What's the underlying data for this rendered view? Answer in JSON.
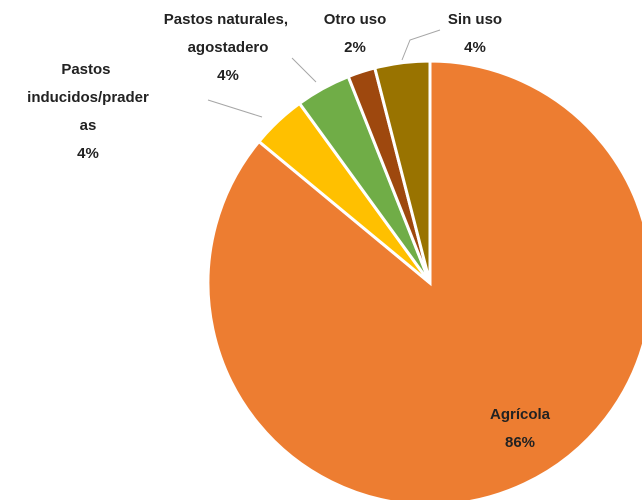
{
  "chart_data": {
    "type": "pie",
    "categories": [
      "Agrícola",
      "Pastos inducidos/praderas",
      "Pastos naturales, agostadero",
      "Otro uso",
      "Sin uso"
    ],
    "values": [
      86,
      4,
      4,
      2,
      4
    ],
    "value_labels": [
      "86%",
      "4%",
      "4%",
      "2%",
      "4%"
    ],
    "colors": [
      "#ED7D31",
      "#FFC000",
      "#70AD47",
      "#9E480E",
      "#997300"
    ]
  }
}
